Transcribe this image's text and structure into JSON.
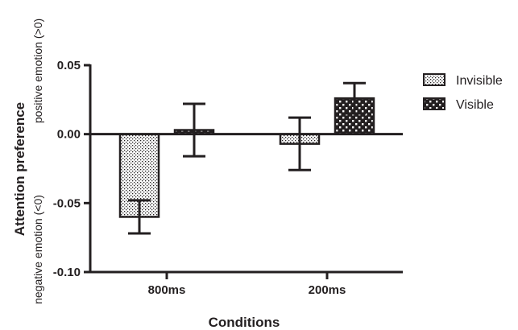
{
  "chart_data": {
    "type": "bar",
    "categories": [
      "800ms",
      "200ms"
    ],
    "series": [
      {
        "name": "Invisible",
        "values": [
          -0.06,
          -0.007
        ],
        "error": [
          0.012,
          0.019
        ],
        "pattern": "dots",
        "color": "#231f20"
      },
      {
        "name": "Visible",
        "values": [
          0.003,
          0.026
        ],
        "error": [
          0.019,
          0.011
        ],
        "pattern": "checker",
        "color": "#231f20"
      }
    ],
    "title": "",
    "xlabel": "Conditions",
    "ylabel": "Attention preference",
    "ylabel_positive": "positive emotion (>0)",
    "ylabel_negative": "negative emotion (<0)",
    "ylim": [
      -0.1,
      0.05
    ],
    "yticks": [
      0.05,
      0.0,
      -0.05,
      -0.1
    ],
    "ytick_labels": [
      "0.05",
      "0.00",
      "-0.05",
      "-0.10"
    ],
    "grid": false,
    "legend_position": "right"
  }
}
